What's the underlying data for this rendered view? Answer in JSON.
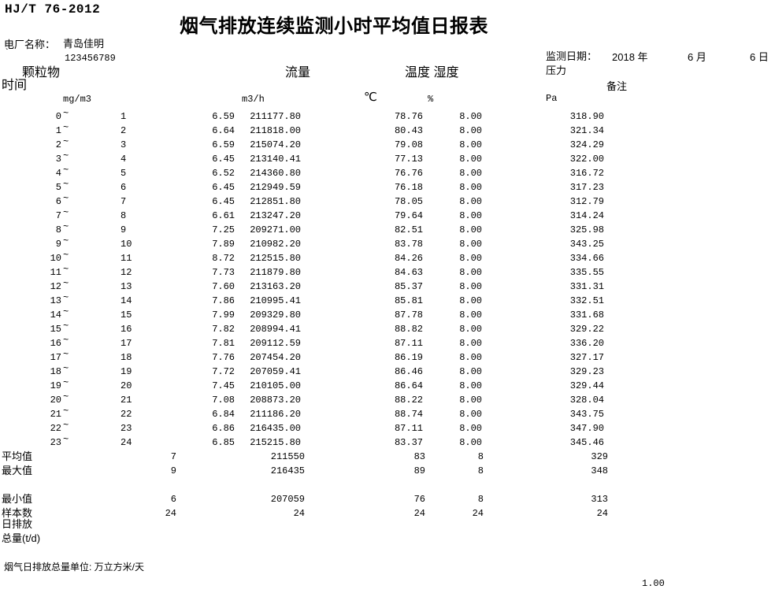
{
  "colors": {
    "background": "#ffffff",
    "text": "#000000"
  },
  "header": {
    "standard": "HJ/T 76-2012",
    "title": "烟气排放连续监测小时平均值日报表",
    "plant_label": "电厂名称：",
    "plant_name": "青岛佳明",
    "plant_tick": "`",
    "plant_code": "123456789",
    "date_label": "监测日期：",
    "date_year": "2018 年",
    "date_month": "6 月",
    "date_day": "6 日"
  },
  "columns": {
    "time": "时间",
    "pm": "颗粒物",
    "flow": "流量",
    "temp_hum": "温度 湿度",
    "pressure": "压力",
    "remark": "备注",
    "unit_pm": "mg/m3",
    "unit_flow": "m3/h",
    "unit_temp": "℃",
    "unit_hum": "%",
    "unit_pressure": "Pa"
  },
  "table": {
    "tilde": "~",
    "rows": [
      {
        "start": "0",
        "end": "1",
        "pm": "6.59",
        "flow": "211177.80",
        "temp": "78.76",
        "hum": "8.00",
        "pressure": "318.90"
      },
      {
        "start": "1",
        "end": "2",
        "pm": "6.64",
        "flow": "211818.00",
        "temp": "80.43",
        "hum": "8.00",
        "pressure": "321.34"
      },
      {
        "start": "2",
        "end": "3",
        "pm": "6.59",
        "flow": "215074.20",
        "temp": "79.08",
        "hum": "8.00",
        "pressure": "324.29"
      },
      {
        "start": "3",
        "end": "4",
        "pm": "6.45",
        "flow": "213140.41",
        "temp": "77.13",
        "hum": "8.00",
        "pressure": "322.00"
      },
      {
        "start": "4",
        "end": "5",
        "pm": "6.52",
        "flow": "214360.80",
        "temp": "76.76",
        "hum": "8.00",
        "pressure": "316.72"
      },
      {
        "start": "5",
        "end": "6",
        "pm": "6.45",
        "flow": "212949.59",
        "temp": "76.18",
        "hum": "8.00",
        "pressure": "317.23"
      },
      {
        "start": "6",
        "end": "7",
        "pm": "6.45",
        "flow": "212851.80",
        "temp": "78.05",
        "hum": "8.00",
        "pressure": "312.79"
      },
      {
        "start": "7",
        "end": "8",
        "pm": "6.61",
        "flow": "213247.20",
        "temp": "79.64",
        "hum": "8.00",
        "pressure": "314.24"
      },
      {
        "start": "8",
        "end": "9",
        "pm": "7.25",
        "flow": "209271.00",
        "temp": "82.51",
        "hum": "8.00",
        "pressure": "325.98"
      },
      {
        "start": "9",
        "end": "10",
        "pm": "7.89",
        "flow": "210982.20",
        "temp": "83.78",
        "hum": "8.00",
        "pressure": "343.25"
      },
      {
        "start": "10",
        "end": "11",
        "pm": "8.72",
        "flow": "212515.80",
        "temp": "84.26",
        "hum": "8.00",
        "pressure": "334.66"
      },
      {
        "start": "11",
        "end": "12",
        "pm": "7.73",
        "flow": "211879.80",
        "temp": "84.63",
        "hum": "8.00",
        "pressure": "335.55"
      },
      {
        "start": "12",
        "end": "13",
        "pm": "7.60",
        "flow": "213163.20",
        "temp": "85.37",
        "hum": "8.00",
        "pressure": "331.31"
      },
      {
        "start": "13",
        "end": "14",
        "pm": "7.86",
        "flow": "210995.41",
        "temp": "85.81",
        "hum": "8.00",
        "pressure": "332.51"
      },
      {
        "start": "14",
        "end": "15",
        "pm": "7.99",
        "flow": "209329.80",
        "temp": "87.78",
        "hum": "8.00",
        "pressure": "331.68"
      },
      {
        "start": "15",
        "end": "16",
        "pm": "7.82",
        "flow": "208994.41",
        "temp": "88.82",
        "hum": "8.00",
        "pressure": "329.22"
      },
      {
        "start": "16",
        "end": "17",
        "pm": "7.81",
        "flow": "209112.59",
        "temp": "87.11",
        "hum": "8.00",
        "pressure": "336.20"
      },
      {
        "start": "17",
        "end": "18",
        "pm": "7.76",
        "flow": "207454.20",
        "temp": "86.19",
        "hum": "8.00",
        "pressure": "327.17"
      },
      {
        "start": "18",
        "end": "19",
        "pm": "7.72",
        "flow": "207059.41",
        "temp": "86.46",
        "hum": "8.00",
        "pressure": "329.23"
      },
      {
        "start": "19",
        "end": "20",
        "pm": "7.45",
        "flow": "210105.00",
        "temp": "86.64",
        "hum": "8.00",
        "pressure": "329.44"
      },
      {
        "start": "20",
        "end": "21",
        "pm": "7.08",
        "flow": "208873.20",
        "temp": "88.22",
        "hum": "8.00",
        "pressure": "328.04"
      },
      {
        "start": "21",
        "end": "22",
        "pm": "6.84",
        "flow": "211186.20",
        "temp": "88.74",
        "hum": "8.00",
        "pressure": "343.75"
      },
      {
        "start": "22",
        "end": "23",
        "pm": "6.86",
        "flow": "216435.00",
        "temp": "87.11",
        "hum": "8.00",
        "pressure": "347.90"
      },
      {
        "start": "23",
        "end": "24",
        "pm": "6.85",
        "flow": "215215.80",
        "temp": "83.37",
        "hum": "8.00",
        "pressure": "345.46"
      }
    ],
    "summary": [
      {
        "label": "平均值",
        "pm": "7",
        "flow": "211550",
        "temp": "83",
        "hum": "8",
        "pressure": "329"
      },
      {
        "label": "最大值",
        "pm": "9",
        "flow": "216435",
        "temp": "89",
        "hum": "8",
        "pressure": "348"
      },
      {
        "label": "最小值",
        "pm": "6",
        "flow": "207059",
        "temp": "76",
        "hum": "8",
        "pressure": "313"
      },
      {
        "label": "样本数",
        "pm": "24",
        "flow": "24",
        "temp": "24",
        "hum": "24",
        "pressure": "24"
      }
    ],
    "daily_label_line1": "日排放",
    "daily_label_line2": "总量(t/d)"
  },
  "footer": {
    "note": "烟气日排放总量单位: 万立方米/天",
    "scale_value": "1.00"
  }
}
